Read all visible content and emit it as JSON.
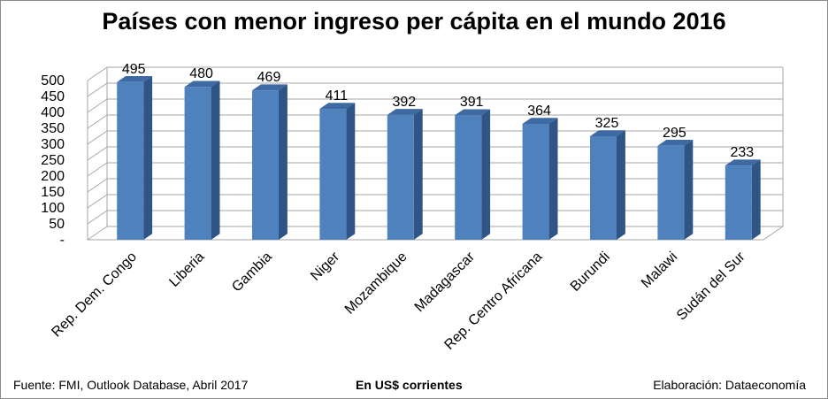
{
  "title": "Países con menor ingreso per cápita en el mundo 2016",
  "footer": {
    "source": "Fuente: FMI, Outlook Database, Abril 2017",
    "units": "En US$ corrientes",
    "credit": "Elaboración: Dataeconomía"
  },
  "colors": {
    "bar_front": "#4f81bd",
    "bar_side": "#2f5486",
    "bar_top": "#3d6aa3",
    "grid": "#a6a6a6"
  },
  "chart_data": {
    "type": "bar",
    "title": "Países con menor ingreso per cápita en el mundo 2016",
    "categories": [
      "Rep. Dem. Congo",
      "Liberia",
      "Gambia",
      "Niger",
      "Mozambique",
      "Madagascar",
      "Rep. Centro Africana",
      "Burundi",
      "Malawi",
      "Sudán del Sur"
    ],
    "values": [
      495,
      480,
      469,
      411,
      392,
      391,
      364,
      325,
      295,
      233
    ],
    "ylim": [
      0,
      500
    ],
    "yticks": [
      "-",
      "50",
      "100",
      "150",
      "200",
      "250",
      "300",
      "350",
      "400",
      "450",
      "500"
    ],
    "xlabel": "",
    "ylabel": "",
    "grid": true,
    "data_labels": true,
    "style": "3d-column"
  }
}
